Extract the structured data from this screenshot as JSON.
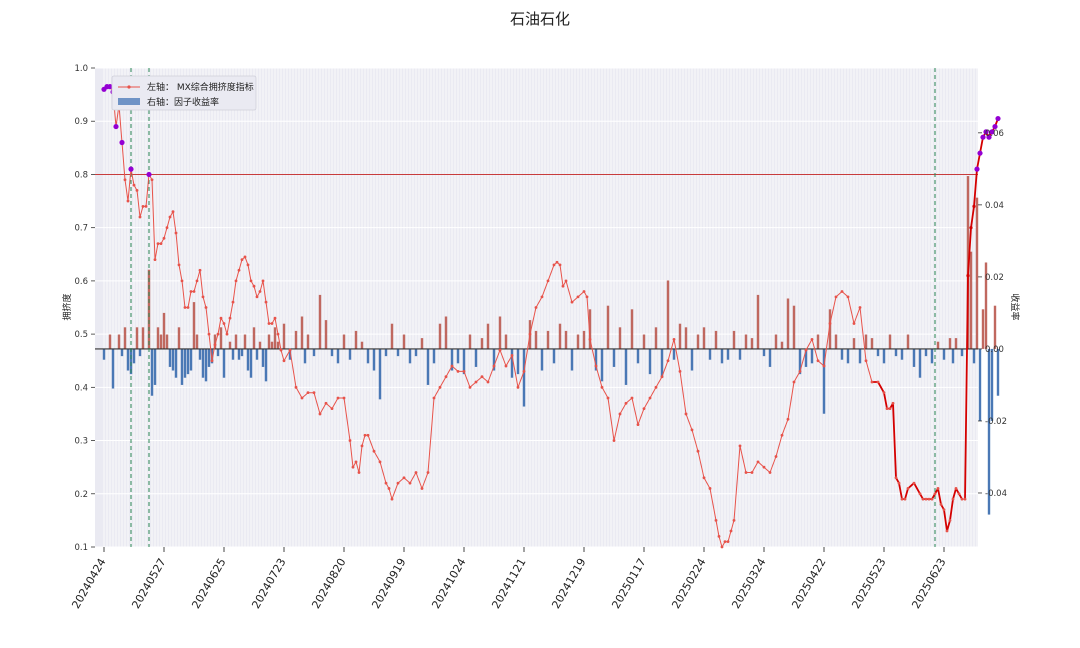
{
  "chart_data": {
    "type": "bar+line",
    "title": "石油石化",
    "ylabel_left": "拥挤度",
    "ylabel_right": "收益率",
    "ylim_left": [
      0.1,
      1.0
    ],
    "ylim_right": [
      -0.055,
      0.078
    ],
    "yticks_left": [
      0.1,
      0.2,
      0.3,
      0.4,
      0.5,
      0.6,
      0.7,
      0.8,
      0.9,
      1.0
    ],
    "ytick_labels_left": [
      "0.1",
      "0.2",
      "0.3",
      "0.4",
      "0.5",
      "0.6",
      "0.7",
      "0.8",
      "0.9",
      "1.0"
    ],
    "yticks_right": [
      -0.04,
      -0.02,
      0.0,
      0.02,
      0.04,
      0.06
    ],
    "ytick_labels_right": [
      "-0.04",
      "-0.02",
      "0.00",
      "0.02",
      "0.04",
      "0.06"
    ],
    "xtick_labels": [
      "20240424",
      "20240527",
      "20240625",
      "20240723",
      "20240820",
      "20240919",
      "20241024",
      "20241121",
      "20241219",
      "20250117",
      "20250224",
      "20250324",
      "20250422",
      "20250523",
      "20250623"
    ],
    "threshold": 0.8,
    "legend": {
      "position": "upper-left",
      "items": [
        {
          "label": "左轴： MX综合拥挤度指标",
          "kind": "line"
        },
        {
          "label": "右轴：因子收益率",
          "kind": "bar"
        }
      ]
    },
    "colors": {
      "line": "#e8534a",
      "line_dark": "#d40000",
      "marker_high": "#9400d3",
      "bar_pos": "#c0685f",
      "bar_neg": "#4a78b5",
      "threshold": "#c83c3c",
      "vline": "#2e8b57",
      "zero": "#333333",
      "plot_bg": "#eaeaf2",
      "grid": "#ffffff"
    },
    "n_points": 288,
    "xtick_index": [
      0,
      20,
      40,
      60,
      80,
      100,
      120,
      140,
      160,
      180,
      200,
      220,
      240,
      260,
      280
    ],
    "vline_index": [
      9,
      15,
      277
    ],
    "line_anchors": [
      [
        0,
        0.96
      ],
      [
        1,
        0.965
      ],
      [
        2,
        0.965
      ],
      [
        3,
        0.955
      ],
      [
        4,
        0.89
      ],
      [
        5,
        0.93
      ],
      [
        6,
        0.86
      ],
      [
        7,
        0.79
      ],
      [
        8,
        0.75
      ],
      [
        9,
        0.81
      ],
      [
        10,
        0.78
      ],
      [
        11,
        0.77
      ],
      [
        12,
        0.72
      ],
      [
        13,
        0.74
      ],
      [
        14,
        0.74
      ],
      [
        15,
        0.8
      ],
      [
        16,
        0.79
      ],
      [
        17,
        0.64
      ],
      [
        18,
        0.67
      ],
      [
        19,
        0.67
      ],
      [
        20,
        0.68
      ],
      [
        21,
        0.7
      ],
      [
        22,
        0.72
      ],
      [
        23,
        0.73
      ],
      [
        24,
        0.69
      ],
      [
        25,
        0.63
      ],
      [
        26,
        0.6
      ],
      [
        27,
        0.55
      ],
      [
        28,
        0.55
      ],
      [
        29,
        0.58
      ],
      [
        30,
        0.58
      ],
      [
        31,
        0.6
      ],
      [
        32,
        0.62
      ],
      [
        33,
        0.57
      ],
      [
        34,
        0.55
      ],
      [
        35,
        0.5
      ],
      [
        36,
        0.45
      ],
      [
        37,
        0.48
      ],
      [
        38,
        0.5
      ],
      [
        39,
        0.53
      ],
      [
        40,
        0.52
      ],
      [
        41,
        0.5
      ],
      [
        42,
        0.53
      ],
      [
        43,
        0.56
      ],
      [
        44,
        0.6
      ],
      [
        45,
        0.62
      ],
      [
        46,
        0.64
      ],
      [
        47,
        0.645
      ],
      [
        48,
        0.63
      ],
      [
        49,
        0.6
      ],
      [
        50,
        0.59
      ],
      [
        51,
        0.57
      ],
      [
        52,
        0.58
      ],
      [
        53,
        0.6
      ],
      [
        54,
        0.56
      ],
      [
        55,
        0.52
      ],
      [
        56,
        0.52
      ],
      [
        57,
        0.53
      ],
      [
        58,
        0.5
      ],
      [
        59,
        0.47
      ],
      [
        60,
        0.45
      ],
      [
        62,
        0.47
      ],
      [
        64,
        0.4
      ],
      [
        66,
        0.38
      ],
      [
        68,
        0.39
      ],
      [
        70,
        0.39
      ],
      [
        72,
        0.35
      ],
      [
        74,
        0.37
      ],
      [
        76,
        0.36
      ],
      [
        78,
        0.38
      ],
      [
        80,
        0.38
      ],
      [
        82,
        0.3
      ],
      [
        83,
        0.25
      ],
      [
        84,
        0.26
      ],
      [
        85,
        0.24
      ],
      [
        86,
        0.29
      ],
      [
        87,
        0.31
      ],
      [
        88,
        0.31
      ],
      [
        90,
        0.28
      ],
      [
        92,
        0.26
      ],
      [
        94,
        0.22
      ],
      [
        95,
        0.21
      ],
      [
        96,
        0.19
      ],
      [
        98,
        0.22
      ],
      [
        100,
        0.23
      ],
      [
        102,
        0.22
      ],
      [
        104,
        0.24
      ],
      [
        106,
        0.21
      ],
      [
        108,
        0.24
      ],
      [
        110,
        0.38
      ],
      [
        112,
        0.4
      ],
      [
        114,
        0.42
      ],
      [
        116,
        0.44
      ],
      [
        118,
        0.43
      ],
      [
        120,
        0.43
      ],
      [
        122,
        0.4
      ],
      [
        124,
        0.41
      ],
      [
        126,
        0.42
      ],
      [
        128,
        0.41
      ],
      [
        130,
        0.44
      ],
      [
        132,
        0.47
      ],
      [
        134,
        0.44
      ],
      [
        136,
        0.46
      ],
      [
        138,
        0.4
      ],
      [
        140,
        0.43
      ],
      [
        142,
        0.5
      ],
      [
        144,
        0.55
      ],
      [
        146,
        0.57
      ],
      [
        148,
        0.6
      ],
      [
        150,
        0.63
      ],
      [
        151,
        0.635
      ],
      [
        152,
        0.63
      ],
      [
        153,
        0.59
      ],
      [
        154,
        0.6
      ],
      [
        156,
        0.56
      ],
      [
        158,
        0.57
      ],
      [
        160,
        0.58
      ],
      [
        161,
        0.57
      ],
      [
        162,
        0.49
      ],
      [
        164,
        0.44
      ],
      [
        166,
        0.4
      ],
      [
        168,
        0.38
      ],
      [
        170,
        0.3
      ],
      [
        172,
        0.35
      ],
      [
        174,
        0.37
      ],
      [
        176,
        0.38
      ],
      [
        178,
        0.33
      ],
      [
        180,
        0.36
      ],
      [
        182,
        0.38
      ],
      [
        184,
        0.4
      ],
      [
        186,
        0.42
      ],
      [
        188,
        0.45
      ],
      [
        190,
        0.49
      ],
      [
        192,
        0.43
      ],
      [
        194,
        0.35
      ],
      [
        196,
        0.32
      ],
      [
        198,
        0.28
      ],
      [
        200,
        0.23
      ],
      [
        202,
        0.21
      ],
      [
        204,
        0.15
      ],
      [
        205,
        0.12
      ],
      [
        206,
        0.1
      ],
      [
        207,
        0.11
      ],
      [
        208,
        0.11
      ],
      [
        209,
        0.13
      ],
      [
        210,
        0.15
      ],
      [
        212,
        0.29
      ],
      [
        214,
        0.24
      ],
      [
        216,
        0.24
      ],
      [
        218,
        0.26
      ],
      [
        220,
        0.25
      ],
      [
        222,
        0.24
      ],
      [
        224,
        0.27
      ],
      [
        226,
        0.31
      ],
      [
        228,
        0.34
      ],
      [
        230,
        0.41
      ],
      [
        232,
        0.43
      ],
      [
        234,
        0.47
      ],
      [
        236,
        0.49
      ],
      [
        238,
        0.45
      ],
      [
        240,
        0.44
      ],
      [
        242,
        0.52
      ],
      [
        244,
        0.57
      ],
      [
        246,
        0.58
      ],
      [
        248,
        0.57
      ],
      [
        250,
        0.52
      ],
      [
        252,
        0.55
      ],
      [
        254,
        0.45
      ],
      [
        256,
        0.41
      ],
      [
        258,
        0.41
      ],
      [
        260,
        0.39
      ],
      [
        261,
        0.36
      ],
      [
        262,
        0.36
      ],
      [
        263,
        0.37
      ],
      [
        264,
        0.23
      ],
      [
        265,
        0.22
      ],
      [
        266,
        0.19
      ],
      [
        267,
        0.19
      ],
      [
        268,
        0.21
      ],
      [
        270,
        0.22
      ],
      [
        272,
        0.2
      ],
      [
        273,
        0.19
      ],
      [
        274,
        0.19
      ],
      [
        275,
        0.19
      ],
      [
        276,
        0.19
      ],
      [
        277,
        0.2
      ],
      [
        278,
        0.21
      ],
      [
        279,
        0.18
      ],
      [
        280,
        0.17
      ],
      [
        281,
        0.13
      ],
      [
        282,
        0.15
      ],
      [
        283,
        0.19
      ],
      [
        284,
        0.21
      ],
      [
        285,
        0.2
      ],
      [
        286,
        0.19
      ],
      [
        287,
        0.19
      ]
    ],
    "line_tail": [
      [
        287,
        0.19
      ],
      [
        288,
        0.61
      ],
      [
        289,
        0.7
      ],
      [
        290,
        0.74
      ],
      [
        291,
        0.81
      ],
      [
        292,
        0.84
      ],
      [
        293,
        0.87
      ],
      [
        294,
        0.88
      ],
      [
        295,
        0.87
      ],
      [
        296,
        0.88
      ],
      [
        297,
        0.89
      ],
      [
        298,
        0.905
      ]
    ],
    "bars": [
      [
        0,
        -0.003
      ],
      [
        2,
        0.004
      ],
      [
        3,
        -0.011
      ],
      [
        5,
        0.004
      ],
      [
        6,
        -0.002
      ],
      [
        7,
        0.006
      ],
      [
        8,
        -0.006
      ],
      [
        9,
        -0.007
      ],
      [
        10,
        -0.004
      ],
      [
        11,
        0.006
      ],
      [
        12,
        -0.002
      ],
      [
        13,
        0.006
      ],
      [
        15,
        0.022
      ],
      [
        16,
        -0.013
      ],
      [
        17,
        -0.01
      ],
      [
        18,
        0.006
      ],
      [
        19,
        0.004
      ],
      [
        20,
        0.01
      ],
      [
        21,
        0.004
      ],
      [
        22,
        -0.005
      ],
      [
        23,
        -0.006
      ],
      [
        24,
        -0.008
      ],
      [
        25,
        0.006
      ],
      [
        26,
        -0.01
      ],
      [
        27,
        -0.008
      ],
      [
        28,
        -0.007
      ],
      [
        29,
        -0.006
      ],
      [
        30,
        0.013
      ],
      [
        31,
        0.004
      ],
      [
        32,
        -0.003
      ],
      [
        33,
        -0.008
      ],
      [
        34,
        -0.009
      ],
      [
        35,
        -0.005
      ],
      [
        36,
        -0.004
      ],
      [
        37,
        0.004
      ],
      [
        38,
        -0.002
      ],
      [
        39,
        0.006
      ],
      [
        40,
        -0.008
      ],
      [
        42,
        0.002
      ],
      [
        43,
        -0.003
      ],
      [
        44,
        0.004
      ],
      [
        45,
        -0.003
      ],
      [
        46,
        -0.002
      ],
      [
        47,
        0.004
      ],
      [
        48,
        -0.006
      ],
      [
        49,
        -0.008
      ],
      [
        50,
        0.006
      ],
      [
        51,
        -0.003
      ],
      [
        52,
        0.002
      ],
      [
        53,
        -0.005
      ],
      [
        54,
        -0.009
      ],
      [
        55,
        0.004
      ],
      [
        56,
        0.002
      ],
      [
        57,
        0.006
      ],
      [
        58,
        0.002
      ],
      [
        60,
        0.007
      ],
      [
        62,
        -0.003
      ],
      [
        64,
        0.005
      ],
      [
        66,
        0.009
      ],
      [
        67,
        -0.004
      ],
      [
        68,
        0.004
      ],
      [
        70,
        -0.002
      ],
      [
        72,
        0.015
      ],
      [
        74,
        0.008
      ],
      [
        76,
        -0.002
      ],
      [
        78,
        -0.004
      ],
      [
        80,
        0.004
      ],
      [
        82,
        -0.003
      ],
      [
        84,
        0.005
      ],
      [
        86,
        0.002
      ],
      [
        88,
        -0.004
      ],
      [
        90,
        -0.006
      ],
      [
        92,
        -0.014
      ],
      [
        94,
        -0.002
      ],
      [
        96,
        0.007
      ],
      [
        98,
        -0.002
      ],
      [
        100,
        0.004
      ],
      [
        102,
        -0.004
      ],
      [
        104,
        -0.002
      ],
      [
        106,
        0.003
      ],
      [
        108,
        -0.01
      ],
      [
        110,
        -0.004
      ],
      [
        112,
        0.007
      ],
      [
        114,
        0.009
      ],
      [
        116,
        -0.006
      ],
      [
        118,
        -0.004
      ],
      [
        120,
        -0.007
      ],
      [
        122,
        0.004
      ],
      [
        124,
        -0.005
      ],
      [
        126,
        0.003
      ],
      [
        128,
        0.007
      ],
      [
        130,
        -0.006
      ],
      [
        132,
        0.009
      ],
      [
        134,
        0.004
      ],
      [
        136,
        -0.008
      ],
      [
        138,
        -0.007
      ],
      [
        140,
        -0.016
      ],
      [
        142,
        0.008
      ],
      [
        144,
        0.005
      ],
      [
        146,
        -0.006
      ],
      [
        148,
        0.005
      ],
      [
        150,
        -0.004
      ],
      [
        152,
        0.007
      ],
      [
        154,
        0.005
      ],
      [
        156,
        -0.006
      ],
      [
        158,
        0.004
      ],
      [
        160,
        0.005
      ],
      [
        162,
        0.011
      ],
      [
        164,
        -0.006
      ],
      [
        166,
        -0.009
      ],
      [
        168,
        0.012
      ],
      [
        170,
        -0.005
      ],
      [
        172,
        0.006
      ],
      [
        174,
        -0.01
      ],
      [
        176,
        0.011
      ],
      [
        178,
        -0.004
      ],
      [
        180,
        0.004
      ],
      [
        182,
        -0.007
      ],
      [
        184,
        0.006
      ],
      [
        186,
        -0.008
      ],
      [
        188,
        0.019
      ],
      [
        190,
        -0.003
      ],
      [
        192,
        0.007
      ],
      [
        194,
        0.006
      ],
      [
        196,
        -0.006
      ],
      [
        198,
        0.004
      ],
      [
        200,
        0.006
      ],
      [
        202,
        -0.003
      ],
      [
        204,
        0.005
      ],
      [
        206,
        -0.004
      ],
      [
        208,
        -0.003
      ],
      [
        210,
        0.005
      ],
      [
        212,
        -0.003
      ],
      [
        214,
        0.004
      ],
      [
        216,
        0.003
      ],
      [
        218,
        0.015
      ],
      [
        220,
        -0.002
      ],
      [
        222,
        -0.005
      ],
      [
        224,
        0.004
      ],
      [
        226,
        0.002
      ],
      [
        228,
        0.014
      ],
      [
        230,
        0.012
      ],
      [
        232,
        -0.007
      ],
      [
        234,
        -0.005
      ],
      [
        236,
        -0.004
      ],
      [
        238,
        0.004
      ],
      [
        240,
        -0.018
      ],
      [
        242,
        0.011
      ],
      [
        244,
        0.004
      ],
      [
        246,
        -0.003
      ],
      [
        248,
        -0.004
      ],
      [
        250,
        0.003
      ],
      [
        252,
        -0.004
      ],
      [
        254,
        0.004
      ],
      [
        256,
        0.003
      ],
      [
        258,
        -0.002
      ],
      [
        260,
        -0.004
      ],
      [
        262,
        0.004
      ],
      [
        264,
        -0.002
      ],
      [
        266,
        -0.003
      ],
      [
        268,
        0.004
      ],
      [
        270,
        -0.005
      ],
      [
        272,
        -0.008
      ],
      [
        274,
        -0.002
      ],
      [
        276,
        -0.004
      ],
      [
        278,
        0.002
      ],
      [
        280,
        -0.003
      ],
      [
        282,
        0.003
      ],
      [
        283,
        -0.004
      ],
      [
        284,
        0.003
      ],
      [
        286,
        -0.002
      ],
      [
        288,
        0.048
      ],
      [
        289,
        0.027
      ],
      [
        290,
        -0.004
      ],
      [
        291,
        0.042
      ],
      [
        292,
        -0.02
      ],
      [
        293,
        0.011
      ],
      [
        294,
        0.024
      ],
      [
        295,
        -0.046
      ],
      [
        296,
        -0.02
      ],
      [
        297,
        0.012
      ],
      [
        298,
        -0.013
      ]
    ],
    "dark_segment": [
      255,
      286
    ],
    "high_threshold": 0.8
  }
}
